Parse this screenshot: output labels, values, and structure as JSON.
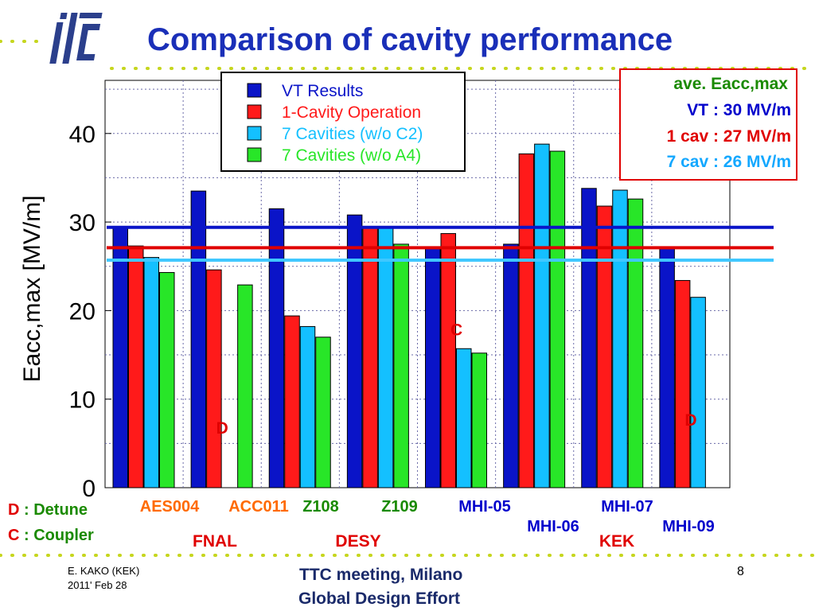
{
  "slide": {
    "title": "Comparison of cavity performance",
    "logo": "ilc",
    "footer": {
      "author": "E. KAKO (KEK)",
      "date": "2011' Feb 28",
      "meeting": "TTC meeting, Milano",
      "effort": "Global Design Effort",
      "page": "8"
    }
  },
  "chart_data": {
    "type": "bar",
    "ylabel": "Eacc,max  [MV/m]",
    "ylim": [
      0,
      46
    ],
    "yticks": [
      "0",
      "10",
      "20",
      "30",
      "40"
    ],
    "grid": true,
    "legend_position": "top-center",
    "categories": [
      "AES004",
      "ACC011",
      "Z108",
      "Z109",
      "MHI-05",
      "MHI-06",
      "MHI-07",
      "MHI-09"
    ],
    "category_colors": [
      "#ff6a00",
      "#ff6a00",
      "#1a8a00",
      "#1a8a00",
      "#0000cc",
      "#0000cc",
      "#0000cc",
      "#0000cc"
    ],
    "series": [
      {
        "name": "VT Results",
        "color": "#0a14c8",
        "values": [
          29.5,
          33.5,
          31.5,
          30.8,
          27.0,
          27.5,
          33.8,
          27.0
        ]
      },
      {
        "name": "1-Cavity Operation",
        "color": "#ff1a1a",
        "values": [
          27.3,
          24.6,
          19.4,
          29.4,
          28.7,
          37.7,
          31.8,
          23.4
        ]
      },
      {
        "name": "7 Cavities (w/o C2)",
        "color": "#14c0ff",
        "values": [
          26.0,
          null,
          18.2,
          29.4,
          15.7,
          38.8,
          33.6,
          21.5
        ]
      },
      {
        "name": "7 Cavities (w/o A4)",
        "color": "#28e628",
        "values": [
          24.3,
          22.9,
          17.0,
          27.5,
          15.2,
          38.0,
          32.6,
          null
        ]
      }
    ],
    "reference_lines": [
      {
        "value": 29.4,
        "color": "#0a14c8"
      },
      {
        "value": 27.1,
        "color": "#e00000"
      },
      {
        "value": 25.7,
        "color": "#40c8ff"
      }
    ],
    "annotations": [
      {
        "text": "D",
        "category": "ACC011",
        "value": 6.1,
        "color": "#e00000"
      },
      {
        "text": "C",
        "category": "MHI-05",
        "value": 17.2,
        "color": "#e00000"
      },
      {
        "text": "D",
        "category": "MHI-09",
        "value": 7.0,
        "color": "#e00000"
      }
    ],
    "labs": [
      {
        "text": "FNAL",
        "color": "#e00000"
      },
      {
        "text": "DESY",
        "color": "#e00000"
      },
      {
        "text": "KEK",
        "color": "#e00000"
      }
    ]
  },
  "summary_box": {
    "title": "ave. Eacc,max",
    "vt": "VT   : 30 MV/m",
    "one_cav": "1 cav : 27 MV/m",
    "seven_cav": "7 cav : 26 MV/m",
    "colors": {
      "title": "#1a8a00",
      "vt": "#0000cc",
      "one_cav": "#e00000",
      "seven_cav": "#14a8ff"
    }
  },
  "key": {
    "d_letter": "D",
    "d_text": " : Detune",
    "c_letter": "C",
    "c_text": " : Coupler",
    "letter_color": "#e00000",
    "text_color": "#1a8a00"
  }
}
